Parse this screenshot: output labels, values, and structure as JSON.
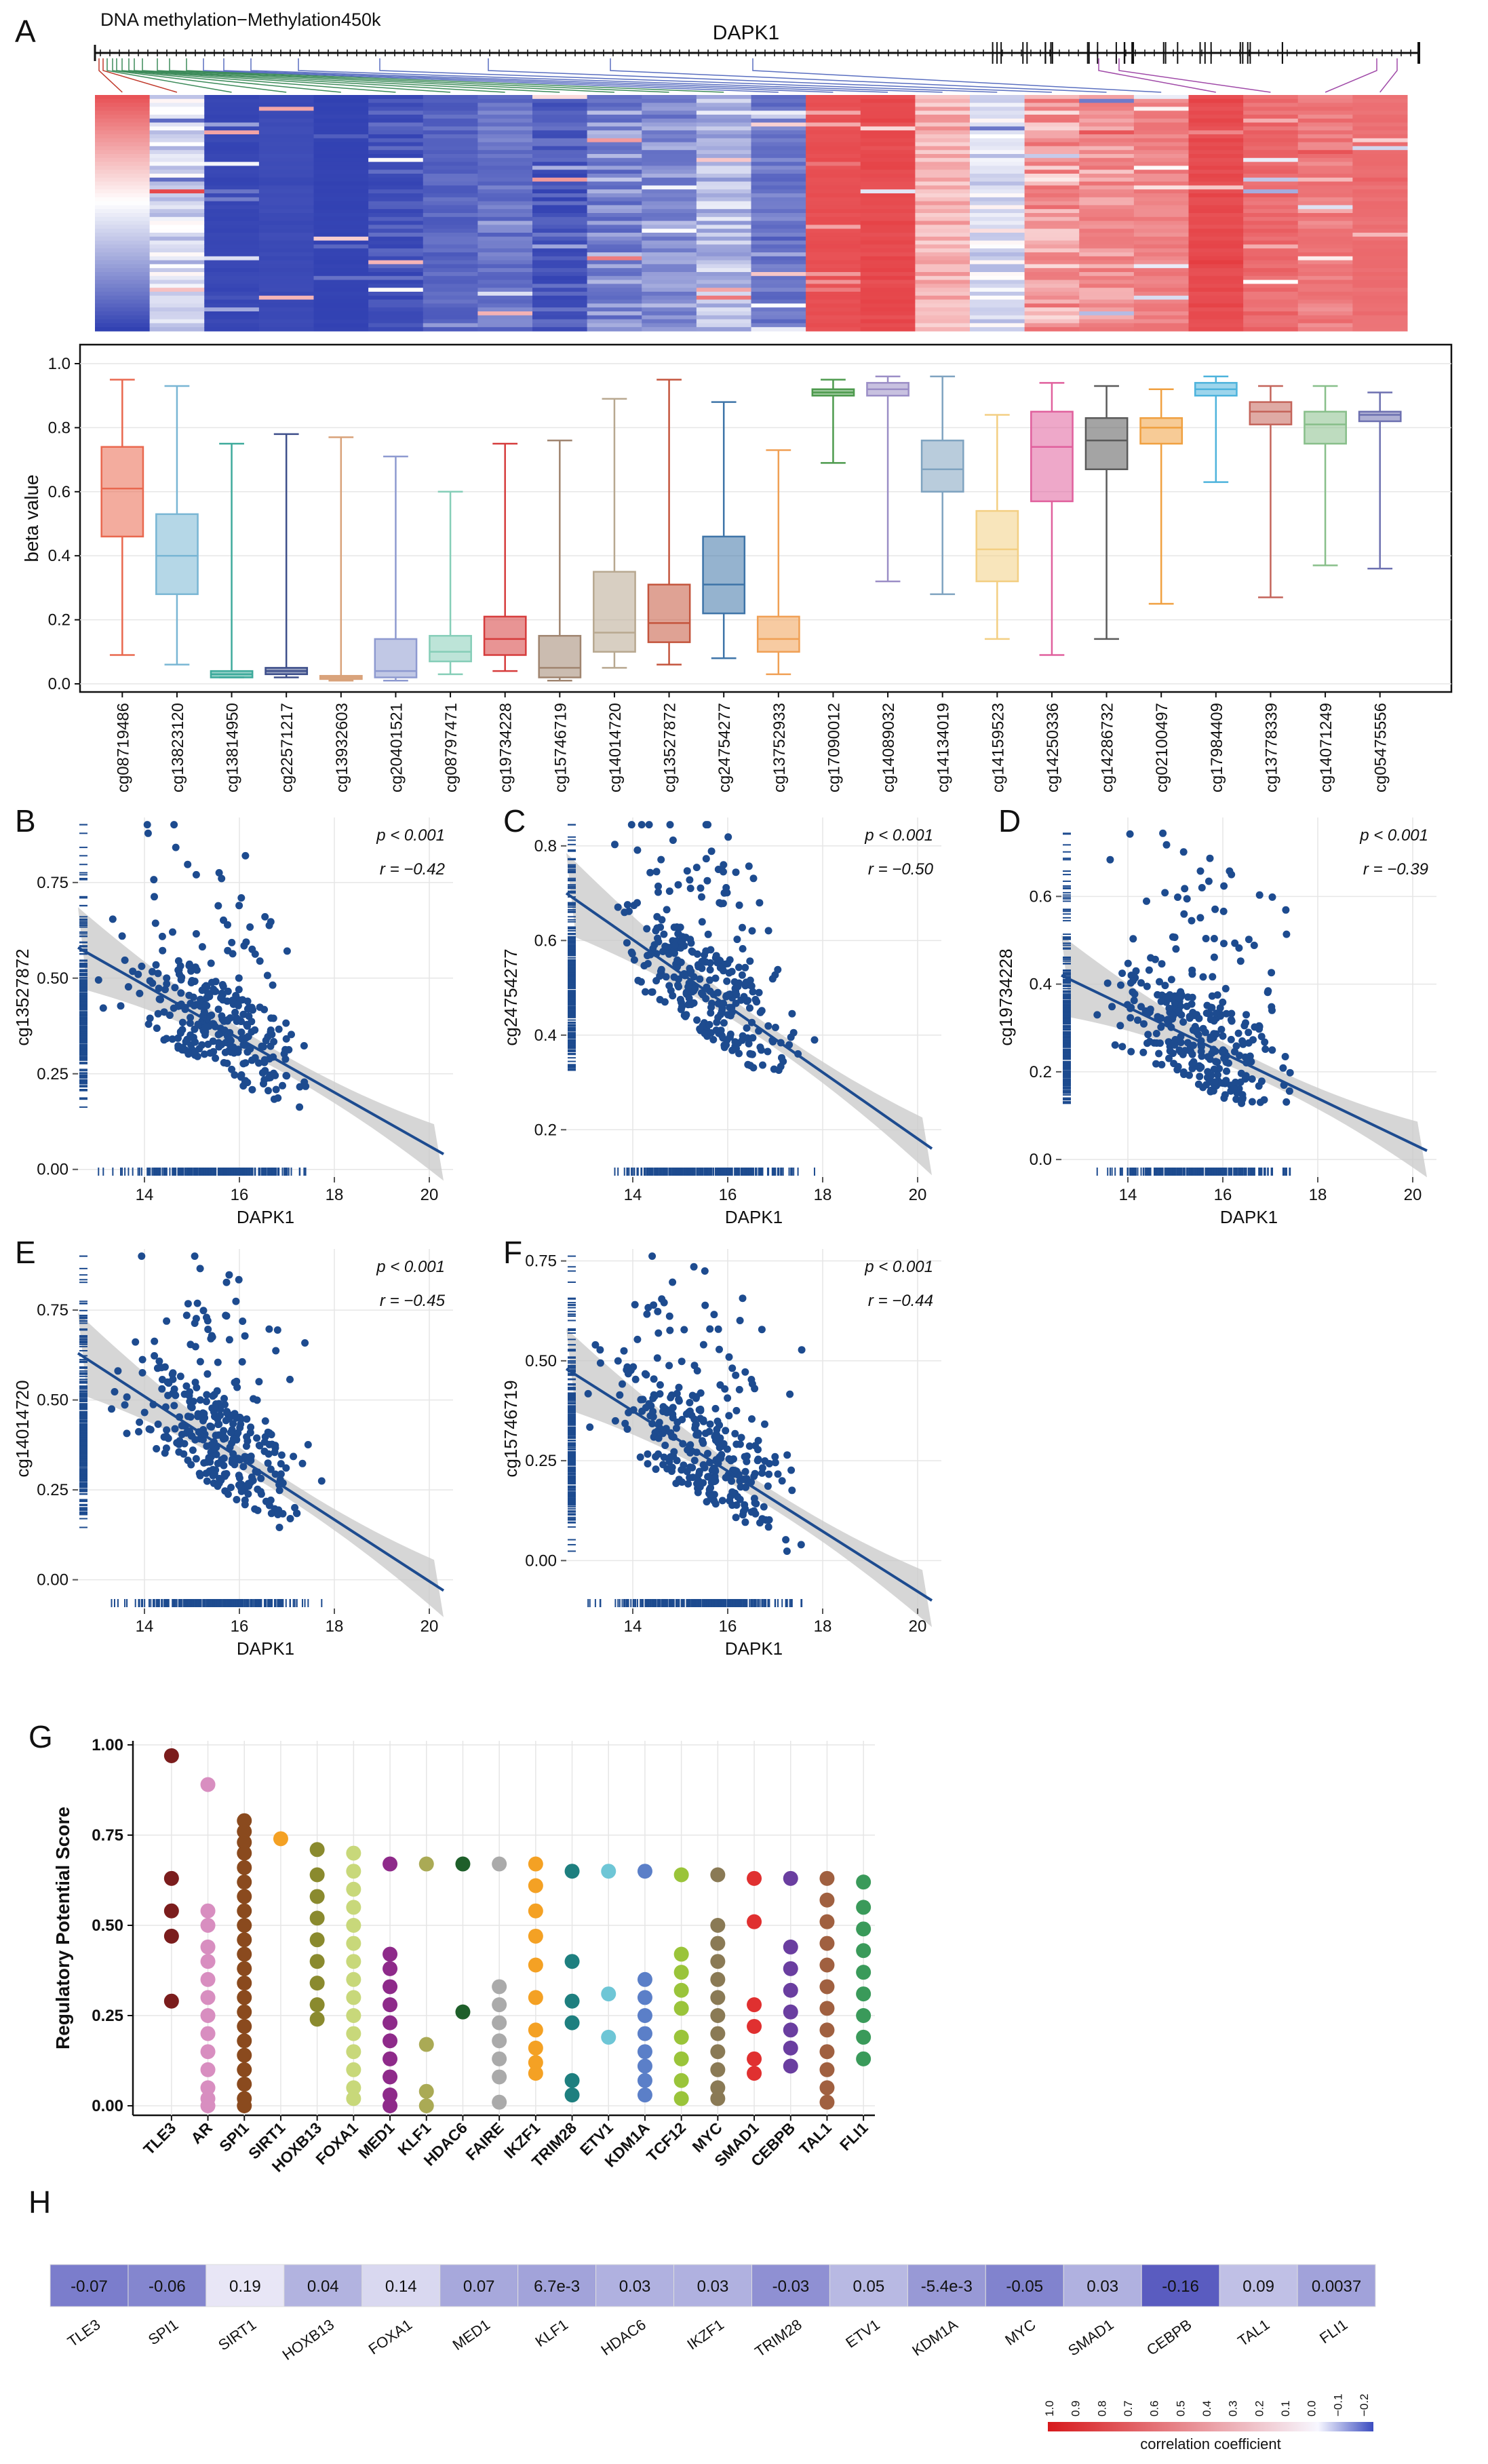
{
  "panels": [
    "A",
    "B",
    "C",
    "D",
    "E",
    "F",
    "G",
    "H"
  ],
  "colors": {
    "navy": "#1d4b8f",
    "heat_high": "#e2282d",
    "heat_low": "#2b3bb0",
    "heat_mid": "#ffffff",
    "grid": "#e6e6e6",
    "band": "#c8c8c8"
  },
  "chart_data": [
    {
      "id": "A_heatmap",
      "type": "heatmap",
      "title": "DNA methylation−Methylation450k",
      "gene_label": "DAPK1",
      "columns": [
        "cg08719486",
        "cg13823120",
        "cg13814950",
        "cg22571217",
        "cg13932603",
        "cg20401521",
        "cg08797471",
        "cg19734228",
        "cg15746719",
        "cg14014720",
        "cg13527872",
        "cg24754277",
        "cg13752933",
        "cg17090012",
        "cg14089032",
        "cg14134019",
        "cg14159523",
        "cg14250336",
        "cg14286732",
        "cg02100497",
        "cg17984409",
        "cg13778339",
        "cg14071249",
        "cg05475556"
      ],
      "color_scale": [
        "#2b3bb0",
        "#ffffff",
        "#e2282d"
      ]
    },
    {
      "id": "A_boxplot",
      "type": "box",
      "ylabel": "beta value",
      "ylim": [
        0,
        1.0
      ],
      "yticks": [
        "0.0",
        "0.2",
        "0.4",
        "0.6",
        "0.8",
        "1.0"
      ],
      "categories": [
        "cg08719486",
        "cg13823120",
        "cg13814950",
        "cg22571217",
        "cg13932603",
        "cg20401521",
        "cg08797471",
        "cg19734228",
        "cg15746719",
        "cg14014720",
        "cg13527872",
        "cg24754277",
        "cg13752933",
        "cg17090012",
        "cg14089032",
        "cg14134019",
        "cg14159523",
        "cg14250336",
        "cg14286732",
        "cg02100497",
        "cg17984409",
        "cg13778339",
        "cg14071249",
        "cg05475556"
      ],
      "colors": [
        "#e9684f",
        "#79b6d4",
        "#3daa9b",
        "#3d4e8a",
        "#d9a27a",
        "#8e9ad0",
        "#86ceb8",
        "#d63c3c",
        "#a08570",
        "#b8a890",
        "#c4553d",
        "#3e74a8",
        "#f0a055",
        "#4d9a4d",
        "#9b8ec6",
        "#7fa3c0",
        "#f3cf83",
        "#e0609d",
        "#5a5a5a",
        "#f0a040",
        "#4db3dc",
        "#c4645a",
        "#88bf8a",
        "#6d70b0"
      ],
      "series": [
        {
          "min": 0.09,
          "q1": 0.46,
          "median": 0.61,
          "q3": 0.74,
          "max": 0.95
        },
        {
          "min": 0.06,
          "q1": 0.28,
          "median": 0.4,
          "q3": 0.53,
          "max": 0.93
        },
        {
          "min": 0.02,
          "q1": 0.02,
          "median": 0.03,
          "q3": 0.04,
          "max": 0.75
        },
        {
          "min": 0.02,
          "q1": 0.03,
          "median": 0.04,
          "q3": 0.05,
          "max": 0.78
        },
        {
          "min": 0.01,
          "q1": 0.015,
          "median": 0.02,
          "q3": 0.025,
          "max": 0.77
        },
        {
          "min": 0.01,
          "q1": 0.02,
          "median": 0.04,
          "q3": 0.14,
          "max": 0.71
        },
        {
          "min": 0.03,
          "q1": 0.07,
          "median": 0.1,
          "q3": 0.15,
          "max": 0.6
        },
        {
          "min": 0.04,
          "q1": 0.09,
          "median": 0.14,
          "q3": 0.21,
          "max": 0.75
        },
        {
          "min": 0.01,
          "q1": 0.02,
          "median": 0.05,
          "q3": 0.15,
          "max": 0.76
        },
        {
          "min": 0.05,
          "q1": 0.1,
          "median": 0.16,
          "q3": 0.35,
          "max": 0.89
        },
        {
          "min": 0.06,
          "q1": 0.13,
          "median": 0.19,
          "q3": 0.31,
          "max": 0.95
        },
        {
          "min": 0.08,
          "q1": 0.22,
          "median": 0.31,
          "q3": 0.46,
          "max": 0.88
        },
        {
          "min": 0.03,
          "q1": 0.1,
          "median": 0.14,
          "q3": 0.21,
          "max": 0.73
        },
        {
          "min": 0.69,
          "q1": 0.9,
          "median": 0.91,
          "q3": 0.92,
          "max": 0.95
        },
        {
          "min": 0.32,
          "q1": 0.9,
          "median": 0.92,
          "q3": 0.94,
          "max": 0.96
        },
        {
          "min": 0.28,
          "q1": 0.6,
          "median": 0.67,
          "q3": 0.76,
          "max": 0.96
        },
        {
          "min": 0.14,
          "q1": 0.32,
          "median": 0.42,
          "q3": 0.54,
          "max": 0.84
        },
        {
          "min": 0.09,
          "q1": 0.57,
          "median": 0.74,
          "q3": 0.85,
          "max": 0.94
        },
        {
          "min": 0.14,
          "q1": 0.67,
          "median": 0.76,
          "q3": 0.83,
          "max": 0.93
        },
        {
          "min": 0.25,
          "q1": 0.75,
          "median": 0.8,
          "q3": 0.83,
          "max": 0.92
        },
        {
          "min": 0.63,
          "q1": 0.9,
          "median": 0.92,
          "q3": 0.94,
          "max": 0.96
        },
        {
          "min": 0.27,
          "q1": 0.81,
          "median": 0.85,
          "q3": 0.88,
          "max": 0.93
        },
        {
          "min": 0.37,
          "q1": 0.75,
          "median": 0.81,
          "q3": 0.85,
          "max": 0.93
        },
        {
          "min": 0.36,
          "q1": 0.82,
          "median": 0.84,
          "q3": 0.85,
          "max": 0.91
        }
      ]
    },
    {
      "id": "B",
      "type": "scatter",
      "xlabel": "DAPK1",
      "ylabel": "cg13527872",
      "xlim": [
        12.6,
        20.5
      ],
      "ylim": [
        -0.02,
        0.92
      ],
      "xticks": [
        14,
        16,
        18,
        20
      ],
      "yticks": [
        0,
        0.25,
        0.5,
        0.75
      ],
      "ytick_labels": [
        "0.00",
        "0.25",
        "0.50",
        "0.75"
      ],
      "p_label": "p < 0.001",
      "r_label": "r = −0.42",
      "fit": {
        "x": [
          12.6,
          20.3
        ],
        "y": [
          0.58,
          0.04
        ]
      },
      "seed": 11
    },
    {
      "id": "C",
      "type": "scatter",
      "xlabel": "DAPK1",
      "ylabel": "cg24754277",
      "xlim": [
        12.6,
        20.5
      ],
      "ylim": [
        0.1,
        0.86
      ],
      "xticks": [
        14,
        16,
        18,
        20
      ],
      "yticks": [
        0.2,
        0.4,
        0.6,
        0.8
      ],
      "ytick_labels": [
        "0.2",
        "0.4",
        "0.6",
        "0.8"
      ],
      "p_label": "p < 0.001",
      "r_label": "r = −0.50",
      "fit": {
        "x": [
          12.6,
          20.3
        ],
        "y": [
          0.7,
          0.16
        ]
      },
      "seed": 23
    },
    {
      "id": "D",
      "type": "scatter",
      "xlabel": "DAPK1",
      "ylabel": "cg19734228",
      "xlim": [
        12.6,
        20.5
      ],
      "ylim": [
        -0.04,
        0.78
      ],
      "xticks": [
        14,
        16,
        18,
        20
      ],
      "yticks": [
        0,
        0.2,
        0.4,
        0.6
      ],
      "ytick_labels": [
        "0.0",
        "0.2",
        "0.4",
        "0.6"
      ],
      "p_label": "p < 0.001",
      "r_label": "r = −0.39",
      "fit": {
        "x": [
          12.6,
          20.3
        ],
        "y": [
          0.42,
          0.02
        ]
      },
      "seed": 37
    },
    {
      "id": "E",
      "type": "scatter",
      "xlabel": "DAPK1",
      "ylabel": "cg14014720",
      "xlim": [
        12.6,
        20.5
      ],
      "ylim": [
        -0.08,
        0.92
      ],
      "xticks": [
        14,
        16,
        18,
        20
      ],
      "yticks": [
        0,
        0.25,
        0.5,
        0.75
      ],
      "ytick_labels": [
        "0.00",
        "0.25",
        "0.50",
        "0.75"
      ],
      "p_label": "p < 0.001",
      "r_label": "r = −0.45",
      "fit": {
        "x": [
          12.6,
          20.3
        ],
        "y": [
          0.63,
          -0.03
        ]
      },
      "seed": 51
    },
    {
      "id": "F",
      "type": "scatter",
      "xlabel": "DAPK1",
      "ylabel": "cg15746719",
      "xlim": [
        12.6,
        20.5
      ],
      "ylim": [
        -0.12,
        0.78
      ],
      "xticks": [
        14,
        16,
        18,
        20
      ],
      "yticks": [
        0,
        0.25,
        0.5,
        0.75
      ],
      "ytick_labels": [
        "0.00",
        "0.25",
        "0.50",
        "0.75"
      ],
      "p_label": "p < 0.001",
      "r_label": "r = −0.44",
      "fit": {
        "x": [
          12.6,
          20.3
        ],
        "y": [
          0.48,
          -0.1
        ]
      },
      "seed": 67
    },
    {
      "id": "G",
      "type": "strip",
      "ylabel": "Regulatory Potential Score",
      "ylim": [
        0,
        1.0
      ],
      "yticks": [
        0,
        0.25,
        0.5,
        0.75,
        1.0
      ],
      "ytick_labels": [
        "0.00",
        "0.25",
        "0.50",
        "0.75",
        "1.00"
      ],
      "categories": [
        "TLE3",
        "AR",
        "SPI1",
        "SIRT1",
        "HOXB13",
        "FOXA1",
        "MED1",
        "KLF1",
        "HDAC6",
        "FAIRE",
        "IKZF1",
        "TRIM28",
        "ETV1",
        "KDM1A",
        "TCF12",
        "MYC",
        "SMAD1",
        "CEBPB",
        "TAL1",
        "FLI1"
      ],
      "colors": [
        "#7b1d1d",
        "#d88ec0",
        "#8a4a1e",
        "#f4a124",
        "#8a8a2e",
        "#c8d87a",
        "#8e2a8a",
        "#aaaa55",
        "#1e5f2a",
        "#aaaaaa",
        "#f4a124",
        "#1e7f7f",
        "#6ec6d6",
        "#5b7fc8",
        "#9ac43a",
        "#8a7a55",
        "#e03030",
        "#6a3ea0",
        "#a06040",
        "#3a9a5a"
      ],
      "values": [
        [
          0.97,
          0.63,
          0.54,
          0.47,
          0.29
        ],
        [
          0.89,
          0.54,
          0.5,
          0.44,
          0.4,
          0.35,
          0.3,
          0.25,
          0.2,
          0.15,
          0.1,
          0.05,
          0.02,
          0.0
        ],
        [
          0.79,
          0.76,
          0.73,
          0.7,
          0.66,
          0.62,
          0.58,
          0.54,
          0.5,
          0.46,
          0.42,
          0.38,
          0.34,
          0.3,
          0.26,
          0.22,
          0.18,
          0.14,
          0.1,
          0.06,
          0.02,
          0.0
        ],
        [
          0.74
        ],
        [
          0.71,
          0.64,
          0.58,
          0.52,
          0.46,
          0.4,
          0.34,
          0.28,
          0.24
        ],
        [
          0.7,
          0.65,
          0.6,
          0.55,
          0.5,
          0.45,
          0.4,
          0.35,
          0.3,
          0.25,
          0.2,
          0.15,
          0.1,
          0.05,
          0.02
        ],
        [
          0.67,
          0.42,
          0.38,
          0.33,
          0.28,
          0.23,
          0.18,
          0.13,
          0.08,
          0.03,
          0.0
        ],
        [
          0.67,
          0.17,
          0.04,
          0.0
        ],
        [
          0.67,
          0.26
        ],
        [
          0.67,
          0.33,
          0.28,
          0.23,
          0.18,
          0.13,
          0.08,
          0.01
        ],
        [
          0.67,
          0.61,
          0.54,
          0.47,
          0.39,
          0.3,
          0.21,
          0.16,
          0.12,
          0.09
        ],
        [
          0.65,
          0.4,
          0.29,
          0.23,
          0.07,
          0.03
        ],
        [
          0.65,
          0.31,
          0.19
        ],
        [
          0.65,
          0.35,
          0.3,
          0.25,
          0.2,
          0.15,
          0.11,
          0.07,
          0.03
        ],
        [
          0.64,
          0.42,
          0.37,
          0.32,
          0.27,
          0.19,
          0.13,
          0.07,
          0.02
        ],
        [
          0.64,
          0.5,
          0.45,
          0.4,
          0.35,
          0.3,
          0.25,
          0.2,
          0.15,
          0.1,
          0.05,
          0.02
        ],
        [
          0.63,
          0.51,
          0.28,
          0.22,
          0.13,
          0.09
        ],
        [
          0.63,
          0.44,
          0.38,
          0.32,
          0.26,
          0.21,
          0.16,
          0.11
        ],
        [
          0.63,
          0.57,
          0.51,
          0.45,
          0.39,
          0.33,
          0.27,
          0.21,
          0.15,
          0.1,
          0.05,
          0.01
        ],
        [
          0.62,
          0.55,
          0.49,
          0.43,
          0.37,
          0.31,
          0.25,
          0.19,
          0.13
        ]
      ]
    },
    {
      "id": "H",
      "type": "heatmap_row",
      "categories": [
        "TLE3",
        "SPI1",
        "SIRT1",
        "HOXB13",
        "FOXA1",
        "MED1",
        "KLF1",
        "HDAC6",
        "IKZF1",
        "TRIM28",
        "ETV1",
        "KDM1A",
        "MYC",
        "SMAD1",
        "CEBPB",
        "TAL1",
        "FLI1"
      ],
      "values": [
        -0.07,
        -0.06,
        0.19,
        0.04,
        0.14,
        0.07,
        0.0067,
        0.03,
        0.03,
        -0.03,
        0.05,
        -0.0054,
        -0.05,
        0.03,
        -0.16,
        0.09,
        0.0037
      ],
      "labels": [
        "-0.07",
        "-0.06",
        "0.19",
        "0.04",
        "0.14",
        "0.07",
        "6.7e-3",
        "0.03",
        "0.03",
        "-0.03",
        "0.05",
        "-5.4e-3",
        "-0.05",
        "0.03",
        "-0.16",
        "0.09",
        "0.0037"
      ],
      "cell_colors": [
        "#7b7dcc",
        "#8486cf",
        "#e8e6f6",
        "#b2b3e0",
        "#d9d8f0",
        "#a7a8dc",
        "#a2a3da",
        "#b0b1e0",
        "#b0b1e0",
        "#8f90d3",
        "#b8b9e3",
        "#9899d6",
        "#8183ce",
        "#b0b1e0",
        "#5a5cc0",
        "#c0c0e6",
        "#a1a2da"
      ],
      "legend": {
        "title": "correlation coefficient",
        "ticks": [
          "1.0",
          "0.9",
          "0.8",
          "0.7",
          "0.6",
          "0.5",
          "0.4",
          "0.3",
          "0.2",
          "0.1",
          "0.0",
          "−0.1",
          "−0.2"
        ],
        "colors": [
          "#d7191c",
          "#f7f7ff",
          "#3b4cc0"
        ]
      }
    }
  ]
}
